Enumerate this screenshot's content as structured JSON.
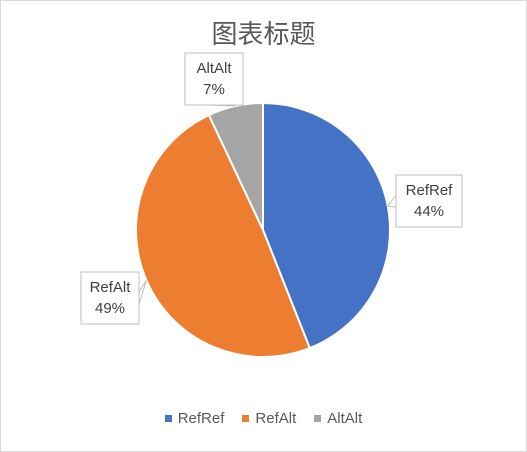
{
  "chart_data": {
    "type": "pie",
    "title": "图表标题",
    "categories": [
      "RefRef",
      "RefAlt",
      "AltAlt"
    ],
    "values": [
      44,
      49,
      7
    ],
    "value_unit": "%",
    "data_labels": [
      "44%",
      "49%",
      "7%"
    ],
    "colors": [
      "#4472c4",
      "#ed7d31",
      "#a5a5a5"
    ],
    "legend_position": "bottom",
    "start_angle": "top (12 o'clock), clockwise"
  }
}
